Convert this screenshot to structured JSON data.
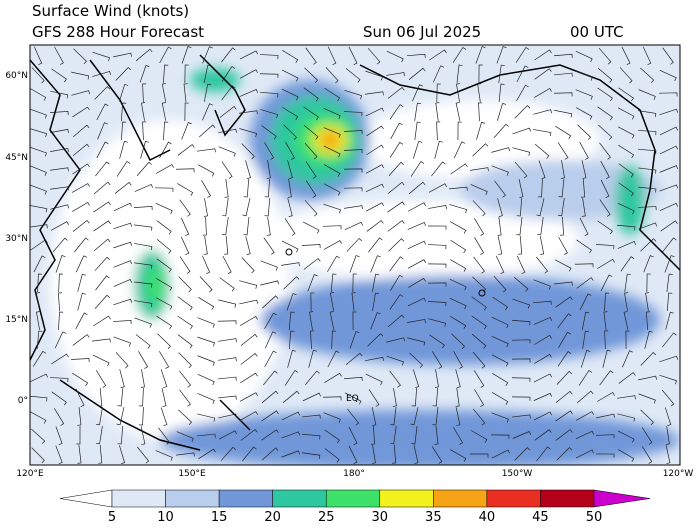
{
  "header": {
    "title": "Surface Wind (knots)",
    "subtitle": "GFS 288 Hour Forecast",
    "date": "Sun 06 Jul 2025",
    "time": "00 UTC"
  },
  "map": {
    "lat_labels": [
      "60°N",
      "45°N",
      "30°N",
      "15°N",
      "0°"
    ],
    "lon_labels": [
      "120°E",
      "150°E",
      "180°",
      "150°W",
      "120°W"
    ],
    "annotations": [
      "EQ"
    ]
  },
  "colorbar": {
    "levels": [
      5,
      10,
      15,
      20,
      25,
      30,
      35,
      40,
      45,
      50
    ],
    "colors": [
      "#ffffff",
      "#dfe9f6",
      "#b9cdec",
      "#7197d9",
      "#2fc7a0",
      "#3ee26a",
      "#f2f21e",
      "#f7a316",
      "#eb2e22",
      "#b5001a",
      "#cc00cc"
    ]
  }
}
